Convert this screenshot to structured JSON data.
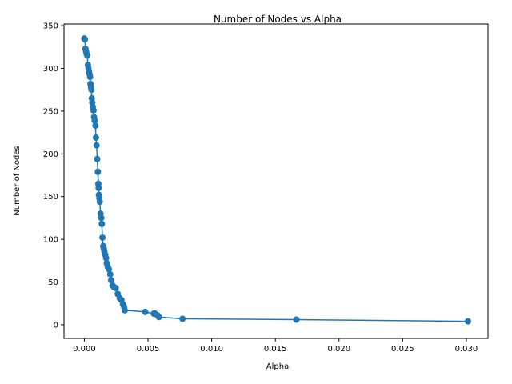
{
  "chart_data": {
    "type": "line",
    "title": "Number of Nodes vs Alpha",
    "xlabel": "Alpha",
    "ylabel": "Number of Nodes",
    "xlim": [
      -0.0016,
      0.0317
    ],
    "ylim": [
      -16,
      352
    ],
    "xticks": [
      0.0,
      0.005,
      0.01,
      0.015,
      0.02,
      0.025,
      0.03
    ],
    "xtick_labels": [
      "0.000",
      "0.005",
      "0.010",
      "0.015",
      "0.020",
      "0.025",
      "0.030"
    ],
    "yticks": [
      0,
      50,
      100,
      150,
      200,
      250,
      300,
      350
    ],
    "ytick_labels": [
      "0",
      "50",
      "100",
      "150",
      "200",
      "250",
      "300",
      "350"
    ],
    "grid": false,
    "line_color": "#1f77b4",
    "series": [
      {
        "x": [
          0.0,
          4e-05,
          8e-05,
          0.00013,
          0.00018,
          0.00023,
          0.00028,
          0.00032,
          0.00037,
          0.00041,
          0.00045,
          0.00048,
          0.00052,
          0.00056,
          0.00058,
          0.00062,
          0.00066,
          0.00072,
          0.00076,
          0.00081,
          0.00087,
          0.00091,
          0.00096,
          0.00101,
          0.00106,
          0.0011,
          0.00112,
          0.00114,
          0.00118,
          0.00121,
          0.00127,
          0.00133,
          0.00137,
          0.00142,
          0.00148,
          0.00152,
          0.00157,
          0.00164,
          0.00171,
          0.00176,
          0.00183,
          0.00192,
          0.00203,
          0.00211,
          0.00221,
          0.00233,
          0.00246,
          0.00262,
          0.00278,
          0.00291,
          0.00303,
          0.00312,
          0.00318,
          0.00478,
          0.00545,
          0.00556,
          0.00575,
          0.00586,
          0.00771,
          0.01665,
          0.03013
        ],
        "y": [
          335,
          334,
          323,
          320,
          317,
          315,
          304,
          300,
          296,
          293,
          290,
          282,
          278,
          275,
          265,
          260,
          255,
          251,
          243,
          239,
          233,
          219,
          210,
          194,
          179,
          165,
          160,
          152,
          148,
          144,
          130,
          125,
          118,
          102,
          92,
          89,
          86,
          82,
          78,
          72,
          68,
          65,
          59,
          52,
          46,
          44,
          43,
          36,
          31,
          29,
          24,
          21,
          17,
          15,
          13,
          13,
          11,
          9,
          7,
          6,
          4
        ]
      }
    ]
  }
}
